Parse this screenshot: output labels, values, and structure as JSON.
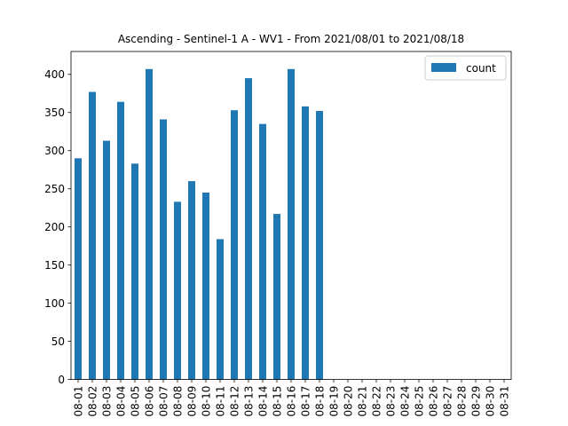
{
  "chart_data": {
    "type": "bar",
    "title": "Ascending - Sentinel-1 A - WV1 - From 2021/08/01 to 2021/08/18",
    "xlabel": "",
    "ylabel": "",
    "categories": [
      "08-01",
      "08-02",
      "08-03",
      "08-04",
      "08-05",
      "08-06",
      "08-07",
      "08-08",
      "08-09",
      "08-10",
      "08-11",
      "08-12",
      "08-13",
      "08-14",
      "08-15",
      "08-16",
      "08-17",
      "08-18",
      "08-19",
      "08-20",
      "08-21",
      "08-22",
      "08-23",
      "08-24",
      "08-25",
      "08-26",
      "08-27",
      "08-28",
      "08-29",
      "08-30",
      "08-31"
    ],
    "series": [
      {
        "name": "count",
        "color": "#1f77b4",
        "values": [
          290,
          377,
          313,
          364,
          283,
          407,
          341,
          233,
          260,
          245,
          184,
          353,
          395,
          335,
          217,
          407,
          358,
          352,
          0,
          0,
          0,
          0,
          0,
          0,
          0,
          0,
          0,
          0,
          0,
          0,
          0
        ]
      }
    ],
    "ylim": [
      0,
      430
    ],
    "yticks": [
      0,
      50,
      100,
      150,
      200,
      250,
      300,
      350,
      400
    ],
    "grid": false,
    "legend_position": "top-right"
  }
}
